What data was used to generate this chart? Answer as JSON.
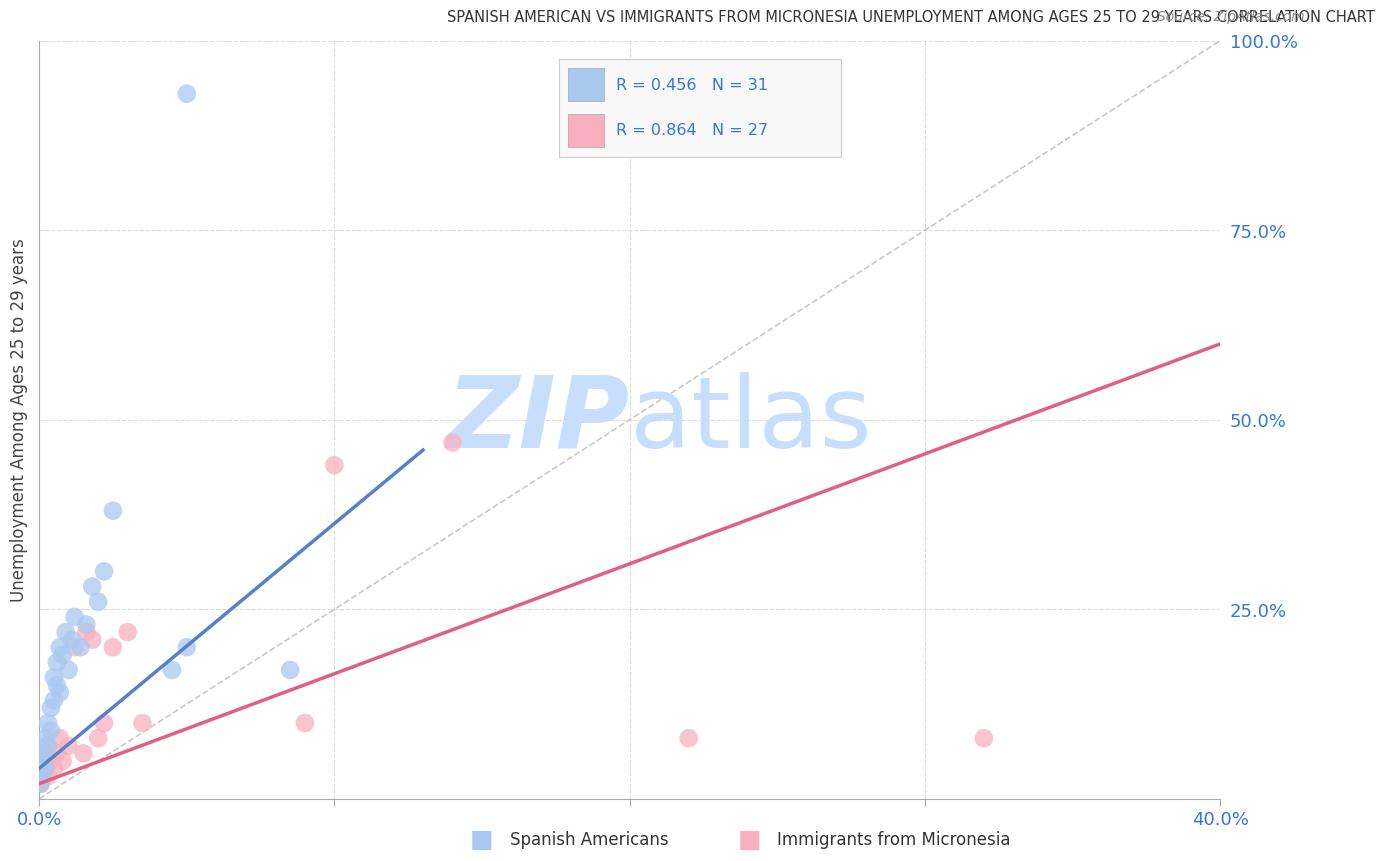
{
  "title": "SPANISH AMERICAN VS IMMIGRANTS FROM MICRONESIA UNEMPLOYMENT AMONG AGES 25 TO 29 YEARS CORRELATION CHART",
  "source": "Source: ZipAtlas.com",
  "ylabel": "Unemployment Among Ages 25 to 29 years",
  "xmin": 0.0,
  "xmax": 0.4,
  "ymin": 0.0,
  "ymax": 1.0,
  "blue_R": 0.456,
  "blue_N": 31,
  "pink_R": 0.864,
  "pink_N": 27,
  "blue_scatter_x": [
    0.0005,
    0.001,
    0.001,
    0.002,
    0.002,
    0.002,
    0.003,
    0.003,
    0.004,
    0.004,
    0.005,
    0.005,
    0.006,
    0.006,
    0.007,
    0.007,
    0.008,
    0.009,
    0.01,
    0.011,
    0.012,
    0.014,
    0.016,
    0.018,
    0.02,
    0.022,
    0.025,
    0.045,
    0.05,
    0.085,
    0.05
  ],
  "blue_scatter_y": [
    0.02,
    0.03,
    0.05,
    0.04,
    0.06,
    0.08,
    0.07,
    0.1,
    0.12,
    0.09,
    0.13,
    0.16,
    0.15,
    0.18,
    0.14,
    0.2,
    0.19,
    0.22,
    0.17,
    0.21,
    0.24,
    0.2,
    0.23,
    0.28,
    0.26,
    0.3,
    0.38,
    0.17,
    0.2,
    0.17,
    0.93
  ],
  "pink_scatter_x": [
    0.0005,
    0.001,
    0.001,
    0.002,
    0.002,
    0.003,
    0.003,
    0.004,
    0.005,
    0.006,
    0.007,
    0.008,
    0.01,
    0.012,
    0.015,
    0.016,
    0.018,
    0.02,
    0.022,
    0.025,
    0.03,
    0.035,
    0.09,
    0.1,
    0.14,
    0.22,
    0.32
  ],
  "pink_scatter_y": [
    0.02,
    0.03,
    0.05,
    0.04,
    0.06,
    0.03,
    0.07,
    0.05,
    0.04,
    0.06,
    0.08,
    0.05,
    0.07,
    0.2,
    0.06,
    0.22,
    0.21,
    0.08,
    0.1,
    0.2,
    0.22,
    0.1,
    0.1,
    0.44,
    0.47,
    0.08,
    0.08
  ],
  "blue_line_x0": 0.0,
  "blue_line_y0": 0.04,
  "blue_line_x1": 0.13,
  "blue_line_y1": 0.46,
  "pink_line_x0": 0.0,
  "pink_line_y0": 0.02,
  "pink_line_x1": 0.4,
  "pink_line_y1": 0.6,
  "blue_color": "#A8C8F0",
  "blue_line_color": "#5580CC",
  "pink_color": "#F8B0C0",
  "pink_line_color": "#E06080",
  "diagonal_color": "#BBBBBB",
  "background_color": "#FFFFFF",
  "grid_color": "#DDDDDD",
  "title_color": "#333333",
  "axis_color": "#3377DD",
  "watermark_zip": "ZIP",
  "watermark_atlas": "atlas",
  "watermark_color": "#C8DEFF",
  "legend_box_color": "#F8F8F8"
}
